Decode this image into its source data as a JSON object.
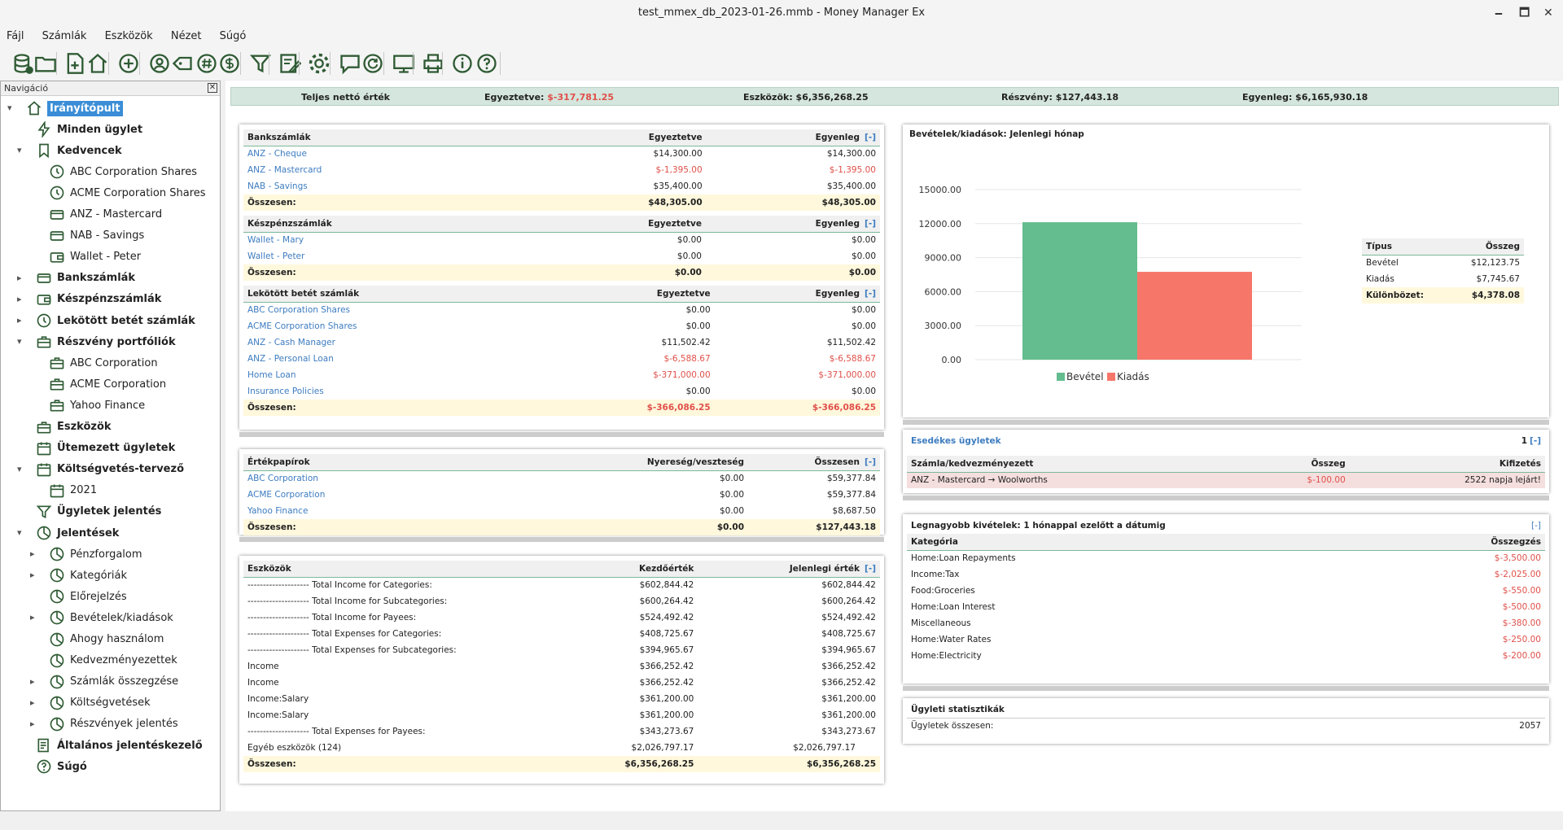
{
  "window": {
    "title": "test_mmex_db_2023-01-26.mmb - Money Manager Ex",
    "min": "🗕",
    "max": "🗖",
    "close": "✕"
  },
  "menu": [
    "Fájl",
    "Számlák",
    "Eszközök",
    "Nézet",
    "Súgó"
  ],
  "toolbar": [
    "new-database",
    "open-database",
    "new-account",
    "dashboard",
    "new-transaction",
    "payees",
    "tags",
    "categories",
    "currencies",
    "transaction-filter",
    "transaction-report",
    "settings",
    "community",
    "refresh",
    "fullscreen",
    "print",
    "about",
    "help"
  ],
  "nav": {
    "header": "Navigáció",
    "close": "✕",
    "items": [
      {
        "label": "Irányítópult",
        "level": 0,
        "icon": "home",
        "bold": true,
        "selected": true,
        "arrow": "down"
      },
      {
        "label": "Minden ügylet",
        "level": 1,
        "icon": "bolt",
        "bold": true
      },
      {
        "label": "Kedvencek",
        "level": 0,
        "icon": "bookmark",
        "bold": true,
        "arrow": "down",
        "indent": 1
      },
      {
        "label": "ABC Corporation Shares",
        "level": 2,
        "icon": "clock"
      },
      {
        "label": "ACME Corporation Shares",
        "level": 2,
        "icon": "clock"
      },
      {
        "label": "ANZ - Mastercard",
        "level": 2,
        "icon": "card"
      },
      {
        "label": "NAB - Savings",
        "level": 2,
        "icon": "card"
      },
      {
        "label": "Wallet - Peter",
        "level": 2,
        "icon": "wallet"
      },
      {
        "label": "Bankszámlák",
        "level": 1,
        "icon": "card",
        "bold": true,
        "arrow": "right"
      },
      {
        "label": "Készpénzszámlák",
        "level": 1,
        "icon": "wallet",
        "bold": true,
        "arrow": "right"
      },
      {
        "label": "Lekötött betét számlák",
        "level": 1,
        "icon": "clock",
        "bold": true,
        "arrow": "right"
      },
      {
        "label": "Részvény portfóliók",
        "level": 1,
        "icon": "briefcase",
        "bold": true,
        "arrow": "down"
      },
      {
        "label": "ABC Corporation",
        "level": 2,
        "icon": "briefcase"
      },
      {
        "label": "ACME Corporation",
        "level": 2,
        "icon": "briefcase"
      },
      {
        "label": "Yahoo Finance",
        "level": 2,
        "icon": "briefcase"
      },
      {
        "label": "Eszközök",
        "level": 1,
        "icon": "briefcase",
        "bold": true
      },
      {
        "label": "Ütemezett ügyletek",
        "level": 1,
        "icon": "calendar",
        "bold": true
      },
      {
        "label": "Költségvetés-tervező",
        "level": 1,
        "icon": "calendar",
        "bold": true,
        "arrow": "down"
      },
      {
        "label": "2021",
        "level": 2,
        "icon": "calendar"
      },
      {
        "label": "Ügyletek jelentés",
        "level": 1,
        "icon": "funnel",
        "bold": true
      },
      {
        "label": "Jelentések",
        "level": 1,
        "icon": "pie",
        "bold": true,
        "arrow": "down"
      },
      {
        "label": "Pénzforgalom",
        "level": 2,
        "icon": "pie",
        "arrow": "right"
      },
      {
        "label": "Kategóriák",
        "level": 2,
        "icon": "pie",
        "arrow": "right"
      },
      {
        "label": "Előrejelzés",
        "level": 2,
        "icon": "pie"
      },
      {
        "label": "Bevételek/kiadások",
        "level": 2,
        "icon": "pie",
        "arrow": "right"
      },
      {
        "label": "Ahogy használom",
        "level": 2,
        "icon": "pie"
      },
      {
        "label": "Kedvezményezettek",
        "level": 2,
        "icon": "pie"
      },
      {
        "label": "Számlák összegzése",
        "level": 2,
        "icon": "pie",
        "arrow": "right"
      },
      {
        "label": "Költségvetések",
        "level": 2,
        "icon": "pie",
        "arrow": "right"
      },
      {
        "label": "Részvények jelentés",
        "level": 2,
        "icon": "pie",
        "arrow": "right"
      },
      {
        "label": "Általános jelentéskezelő",
        "level": 1,
        "icon": "report",
        "bold": true
      },
      {
        "label": "Súgó",
        "level": 1,
        "icon": "help",
        "bold": true
      }
    ]
  },
  "summary": {
    "label": "Teljes nettó érték",
    "reconciled_label": "Egyeztetve: ",
    "reconciled": "$-317,781.25",
    "assets": "Eszközök: $6,356,268.25",
    "stocks": "Részvény: $127,443.18",
    "balance": "Egyenleg: $6,165,930.18"
  },
  "toggle": "[-]",
  "accounts": {
    "sections": [
      {
        "title": "Bankszámlák",
        "col1": "Egyeztetve",
        "col2": "Egyenleg",
        "rows": [
          {
            "name": "ANZ - Cheque",
            "v1": "$14,300.00",
            "v2": "$14,300.00"
          },
          {
            "name": "ANZ - Mastercard",
            "v1": "$-1,395.00",
            "v2": "$-1,395.00",
            "neg": true
          },
          {
            "name": "NAB - Savings",
            "v1": "$35,400.00",
            "v2": "$35,400.00"
          }
        ],
        "total": {
          "label": "Összesen:",
          "v1": "$48,305.00",
          "v2": "$48,305.00"
        }
      },
      {
        "title": "Készpénzszámlák",
        "col1": "Egyeztetve",
        "col2": "Egyenleg",
        "rows": [
          {
            "name": "Wallet - Mary",
            "v1": "$0.00",
            "v2": "$0.00"
          },
          {
            "name": "Wallet - Peter",
            "v1": "$0.00",
            "v2": "$0.00"
          }
        ],
        "total": {
          "label": "Összesen:",
          "v1": "$0.00",
          "v2": "$0.00"
        }
      },
      {
        "title": "Lekötött betét számlák",
        "col1": "Egyeztetve",
        "col2": "Egyenleg",
        "rows": [
          {
            "name": "ABC Corporation Shares",
            "v1": "$0.00",
            "v2": "$0.00"
          },
          {
            "name": "ACME Corporation Shares",
            "v1": "$0.00",
            "v2": "$0.00"
          },
          {
            "name": "ANZ - Cash Manager",
            "v1": "$11,502.42",
            "v2": "$11,502.42"
          },
          {
            "name": "ANZ - Personal Loan",
            "v1": "$-6,588.67",
            "v2": "$-6,588.67",
            "neg": true
          },
          {
            "name": "Home Loan",
            "v1": "$-371,000.00",
            "v2": "$-371,000.00",
            "neg": true
          },
          {
            "name": "Insurance Policies",
            "v1": "$0.00",
            "v2": "$0.00"
          }
        ],
        "total": {
          "label": "Összesen:",
          "v1": "$-366,086.25",
          "v2": "$-366,086.25",
          "neg": true
        }
      }
    ]
  },
  "stocks": {
    "title": "Értékpapírok",
    "col1": "Nyereség/veszteség",
    "col2": "Összesen",
    "rows": [
      {
        "name": "ABC Corporation",
        "v1": "$0.00",
        "v2": "$59,377.84"
      },
      {
        "name": "ACME Corporation",
        "v1": "$0.00",
        "v2": "$59,377.84"
      },
      {
        "name": "Yahoo Finance",
        "v1": "$0.00",
        "v2": "$8,687.50"
      }
    ],
    "total": {
      "label": "Összesen:",
      "v1": "$0.00",
      "v2": "$127,443.18"
    }
  },
  "assets": {
    "title": "Eszközök",
    "col1": "Kezdőérték",
    "col2": "Jelenlegi érték",
    "rows": [
      {
        "name": "-------------------- Total Income for Categories:",
        "v1": "$602,844.42",
        "v2": "$602,844.42"
      },
      {
        "name": "-------------------- Total Income for Subcategories:",
        "v1": "$600,264.42",
        "v2": "$600,264.42"
      },
      {
        "name": "-------------------- Total Income for Payees:",
        "v1": "$524,492.42",
        "v2": "$524,492.42"
      },
      {
        "name": "-------------------- Total Expenses for Categories:",
        "v1": "$408,725.67",
        "v2": "$408,725.67"
      },
      {
        "name": "-------------------- Total Expenses for Subcategories:",
        "v1": "$394,965.67",
        "v2": "$394,965.67"
      },
      {
        "name": "Income",
        "v1": "$366,252.42",
        "v2": "$366,252.42"
      },
      {
        "name": "Income",
        "v1": "$366,252.42",
        "v2": "$366,252.42"
      },
      {
        "name": "Income:Salary",
        "v1": "$361,200.00",
        "v2": "$361,200.00"
      },
      {
        "name": "Income:Salary",
        "v1": "$361,200.00",
        "v2": "$361,200.00"
      },
      {
        "name": "-------------------- Total Expenses for Payees:",
        "v1": "$343,273.67",
        "v2": "$343,273.67"
      },
      {
        "name": "Egyéb eszközök (124)",
        "v1": "$2,026,797.17",
        "v2": "$2,026,797.17",
        "mid": true
      }
    ],
    "total": {
      "label": "Összesen:",
      "v1": "$6,356,268.25",
      "v2": "$6,356,268.25"
    }
  },
  "income_chart": {
    "title": "Bevételek/kiadások: Jelenlegi hónap",
    "chart_data": {
      "type": "bar",
      "categories": [
        "Bevétel",
        "Kiadás"
      ],
      "values": [
        12123.75,
        7745.67
      ],
      "colors": [
        "#63bd8e",
        "#f6766a"
      ],
      "ylim": [
        0,
        15000
      ],
      "yticks": [
        "15000.00",
        "12000.00",
        "9000.00",
        "6000.00",
        "3000.00",
        "0.00"
      ],
      "legend": [
        "Bevétel",
        "Kiadás"
      ]
    },
    "table": {
      "h1": "Típus",
      "h2": "Összeg",
      "rows": [
        {
          "k": "Bevétel",
          "v": "$12,123.75"
        },
        {
          "k": "Kiadás",
          "v": "$7,745.67"
        }
      ],
      "total": {
        "k": "Különbözet:",
        "v": "$4,378.08"
      }
    }
  },
  "due": {
    "title": "Esedékes ügyletek",
    "count": "1",
    "h1": "Számla/kedvezményezett",
    "h2": "Összeg",
    "h3": "Kifizetés",
    "row": {
      "payee": "ANZ - Mastercard → Woolworths",
      "amount": "$-100.00",
      "due": "2522 napja lejárt!"
    }
  },
  "withdrawals": {
    "title": "Legnagyobb kivételek: 1 hónappal ezelőtt a dátumig",
    "h1": "Kategória",
    "h2": "Összegzés",
    "rows": [
      {
        "k": "Home:Loan Repayments",
        "v": "$-3,500.00"
      },
      {
        "k": "Income:Tax",
        "v": "$-2,025.00"
      },
      {
        "k": "Food:Groceries",
        "v": "$-550.00"
      },
      {
        "k": "Home:Loan Interest",
        "v": "$-500.00"
      },
      {
        "k": "Miscellaneous",
        "v": "$-380.00"
      },
      {
        "k": "Home:Water Rates",
        "v": "$-250.00"
      },
      {
        "k": "Home:Electricity",
        "v": "$-200.00"
      }
    ]
  },
  "stats": {
    "title": "Ügyleti statisztikák",
    "label": "Ügyletek összesen:",
    "value": "2057"
  }
}
